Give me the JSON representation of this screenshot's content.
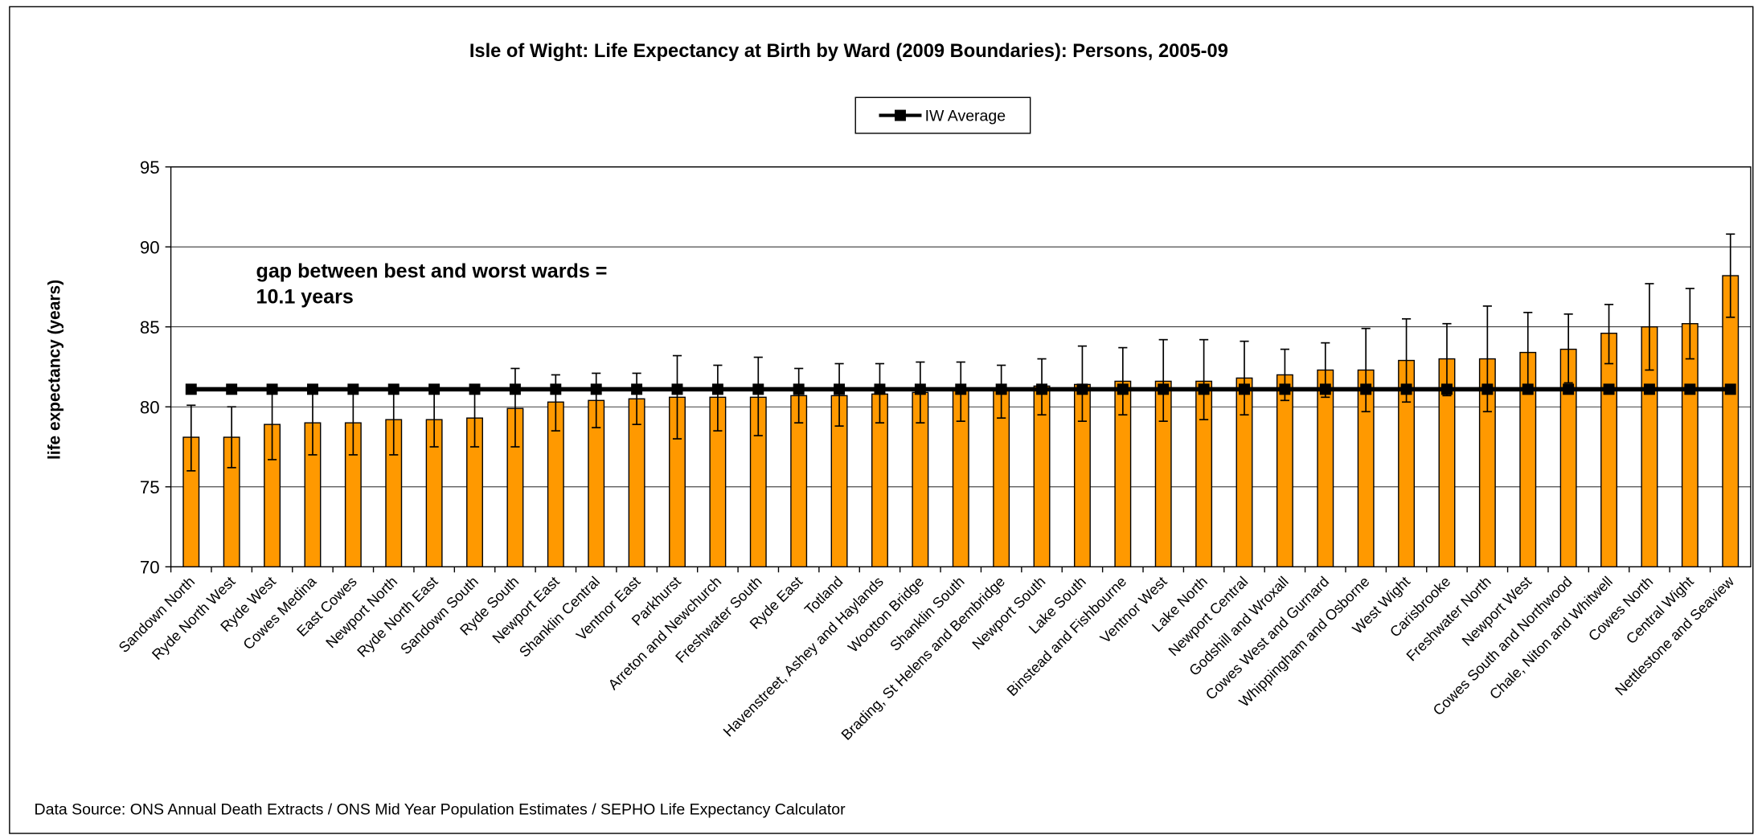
{
  "chart_data": {
    "type": "bar",
    "title": "Isle of Wight: Life Expectancy at Birth by Ward (2009 Boundaries): Persons, 2005-09",
    "y_label": "life expectancy (years)",
    "source": "Data Source: ONS Annual Death Extracts / ONS Mid Year Population Estimates / SEPHO Life Expectancy Calculator",
    "annotation": {
      "lines": [
        "gap between best and worst wards =",
        "10.1 years"
      ],
      "color": "#ff0000"
    },
    "categories": [
      "Sandown North",
      "Ryde North West",
      "Ryde West",
      "Cowes Medina",
      "East Cowes",
      "Newport North",
      "Ryde North East",
      "Sandown South",
      "Ryde South",
      "Newport East",
      "Shanklin Central",
      "Ventnor East",
      "Parkhurst",
      "Arreton and Newchurch",
      "Freshwater South",
      "Ryde East",
      "Totland",
      "Havenstreet, Ashey and Haylands",
      "Wootton Bridge",
      "Shanklin South",
      "Brading, St Helens and Bembridge",
      "Newport South",
      "Lake South",
      "Binstead and Fishbourne",
      "Ventnor West",
      "Lake North",
      "Newport Central",
      "Godshill and Wroxall",
      "Cowes West and Gurnard",
      "Whippingham and Osborne",
      "West Wight",
      "Carisbrooke",
      "Freshwater North",
      "Newport West",
      "Cowes South and Northwood",
      "Chale, Niton and Whitwell",
      "Cowes North",
      "Central Wight",
      "Nettlestone and Seaview"
    ],
    "values": [
      78.1,
      78.1,
      78.9,
      79.0,
      79.0,
      79.2,
      79.2,
      79.3,
      79.9,
      80.3,
      80.4,
      80.5,
      80.6,
      80.6,
      80.6,
      80.7,
      80.7,
      80.8,
      80.9,
      81.0,
      81.0,
      81.3,
      81.4,
      81.6,
      81.6,
      81.6,
      81.8,
      82.0,
      82.3,
      82.3,
      82.9,
      83.0,
      83.0,
      83.4,
      83.6,
      84.6,
      85.0,
      85.2,
      88.2
    ],
    "lower": [
      76.0,
      76.2,
      76.7,
      77.0,
      77.0,
      77.0,
      77.5,
      77.5,
      77.5,
      78.5,
      78.7,
      78.9,
      78.0,
      78.5,
      78.2,
      79.0,
      78.8,
      79.0,
      79.0,
      79.1,
      79.3,
      79.5,
      79.1,
      79.5,
      79.1,
      79.2,
      79.5,
      80.4,
      80.6,
      79.7,
      80.3,
      80.7,
      79.7,
      80.8,
      81.5,
      82.7,
      82.3,
      83.0,
      85.6
    ],
    "upper": [
      80.1,
      80.0,
      81.0,
      81.1,
      81.1,
      81.2,
      81.0,
      81.2,
      82.4,
      82.0,
      82.1,
      82.1,
      83.2,
      82.6,
      83.1,
      82.4,
      82.7,
      82.7,
      82.8,
      82.8,
      82.6,
      83.0,
      83.8,
      83.7,
      84.2,
      84.2,
      84.1,
      83.6,
      84.0,
      84.9,
      85.5,
      85.2,
      86.3,
      85.9,
      85.8,
      86.4,
      87.7,
      87.4,
      90.8
    ],
    "color": "#ff9900",
    "average": {
      "name": "IW Average",
      "color": "#000000",
      "values": [
        81.1,
        81.1,
        81.1,
        81.1,
        81.1,
        81.1,
        81.1,
        81.1,
        81.1,
        81.1,
        81.1,
        81.1,
        81.1,
        81.1,
        81.1,
        81.1,
        81.1,
        81.1,
        81.1,
        81.1,
        81.1,
        81.1,
        81.1,
        81.1,
        81.1,
        81.1,
        81.1,
        81.1,
        81.1,
        81.1,
        81.1,
        81.1,
        81.1,
        81.1,
        81.1,
        81.1,
        81.1,
        81.1,
        81.1
      ]
    },
    "ylim": [
      70,
      95
    ],
    "yticks": [
      70,
      75,
      80,
      85,
      90,
      95
    ],
    "grid": true
  }
}
